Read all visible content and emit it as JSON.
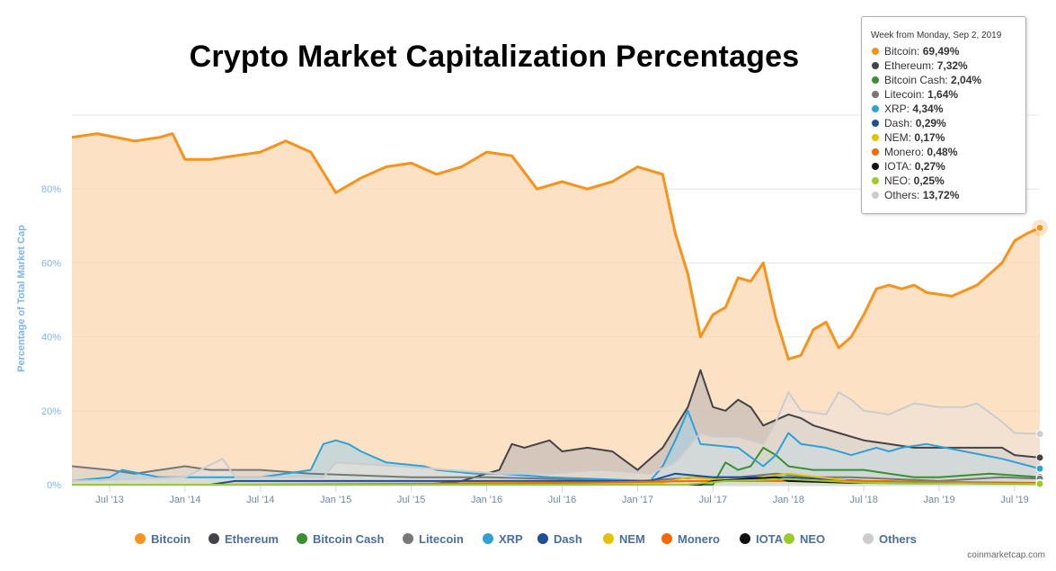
{
  "chart_data": {
    "type": "area",
    "title": "Crypto Market Capitalization Percentages",
    "xlabel": "",
    "ylabel": "Percentage of Total Market Cap",
    "ylim": [
      0,
      100
    ],
    "y_ticks": [
      "0%",
      "20%",
      "40%",
      "60%",
      "80%"
    ],
    "x_ticks": [
      "Jul '13",
      "Jan '14",
      "Jul '14",
      "Jan '15",
      "Jul '15",
      "Jan '16",
      "Jul '16",
      "Jan '17",
      "Jul '17",
      "Jan '18",
      "Jul '18",
      "Jan '19",
      "Jul '19"
    ],
    "x_tick_dates": [
      "2013-07",
      "2014-01",
      "2014-07",
      "2015-01",
      "2015-07",
      "2016-01",
      "2016-07",
      "2017-01",
      "2017-07",
      "2018-01",
      "2018-07",
      "2019-01",
      "2019-07"
    ],
    "x_range": [
      "2013-04",
      "2019-09"
    ],
    "grid": true,
    "legend_position": "bottom",
    "series": [
      {
        "name": "Bitcoin",
        "color": "#f7931a",
        "fill": "#fbd7b0",
        "points": [
          [
            "2013-04",
            94
          ],
          [
            "2013-06",
            95
          ],
          [
            "2013-09",
            93
          ],
          [
            "2013-11",
            94
          ],
          [
            "2013-12",
            95
          ],
          [
            "2014-01",
            88
          ],
          [
            "2014-03",
            88
          ],
          [
            "2014-05",
            89
          ],
          [
            "2014-07",
            90
          ],
          [
            "2014-09",
            93
          ],
          [
            "2014-11",
            90
          ],
          [
            "2015-01",
            79
          ],
          [
            "2015-03",
            83
          ],
          [
            "2015-05",
            86
          ],
          [
            "2015-07",
            87
          ],
          [
            "2015-09",
            84
          ],
          [
            "2015-11",
            86
          ],
          [
            "2016-01",
            90
          ],
          [
            "2016-03",
            89
          ],
          [
            "2016-05",
            80
          ],
          [
            "2016-07",
            82
          ],
          [
            "2016-09",
            80
          ],
          [
            "2016-11",
            82
          ],
          [
            "2017-01",
            86
          ],
          [
            "2017-02",
            85
          ],
          [
            "2017-03",
            84
          ],
          [
            "2017-04",
            68
          ],
          [
            "2017-05",
            57
          ],
          [
            "2017-06",
            40
          ],
          [
            "2017-07",
            46
          ],
          [
            "2017-08",
            48
          ],
          [
            "2017-09",
            56
          ],
          [
            "2017-10",
            55
          ],
          [
            "2017-11",
            60
          ],
          [
            "2017-12",
            45
          ],
          [
            "2018-01",
            34
          ],
          [
            "2018-02",
            35
          ],
          [
            "2018-03",
            42
          ],
          [
            "2018-04",
            44
          ],
          [
            "2018-05",
            37
          ],
          [
            "2018-06",
            40
          ],
          [
            "2018-07",
            46
          ],
          [
            "2018-08",
            53
          ],
          [
            "2018-09",
            54
          ],
          [
            "2018-10",
            53
          ],
          [
            "2018-11",
            54
          ],
          [
            "2018-12",
            52
          ],
          [
            "2019-02",
            51
          ],
          [
            "2019-04",
            54
          ],
          [
            "2019-05",
            57
          ],
          [
            "2019-06",
            60
          ],
          [
            "2019-07",
            66
          ],
          [
            "2019-08",
            68
          ],
          [
            "2019-09",
            69.49
          ]
        ]
      },
      {
        "name": "Ethereum",
        "color": "#434348",
        "fill": "#b5b3b5",
        "points": [
          [
            "2013-04",
            0
          ],
          [
            "2015-08",
            0
          ],
          [
            "2015-11",
            1
          ],
          [
            "2016-02",
            4
          ],
          [
            "2016-03",
            11
          ],
          [
            "2016-04",
            10
          ],
          [
            "2016-06",
            12
          ],
          [
            "2016-07",
            9
          ],
          [
            "2016-09",
            10
          ],
          [
            "2016-11",
            9
          ],
          [
            "2017-01",
            4
          ],
          [
            "2017-03",
            10
          ],
          [
            "2017-05",
            21
          ],
          [
            "2017-06",
            31
          ],
          [
            "2017-07",
            21
          ],
          [
            "2017-08",
            20
          ],
          [
            "2017-09",
            23
          ],
          [
            "2017-10",
            21
          ],
          [
            "2017-11",
            16
          ],
          [
            "2018-01",
            19
          ],
          [
            "2018-02",
            18
          ],
          [
            "2018-03",
            16
          ],
          [
            "2018-05",
            14
          ],
          [
            "2018-07",
            12
          ],
          [
            "2018-09",
            11
          ],
          [
            "2018-11",
            10
          ],
          [
            "2019-01",
            10
          ],
          [
            "2019-03",
            10
          ],
          [
            "2019-06",
            10
          ],
          [
            "2019-07",
            8
          ],
          [
            "2019-09",
            7.32
          ]
        ]
      },
      {
        "name": "Bitcoin Cash",
        "color": "#3b8f33",
        "fill": "#a7c9a1",
        "points": [
          [
            "2013-04",
            0
          ],
          [
            "2017-07",
            0
          ],
          [
            "2017-08",
            6
          ],
          [
            "2017-09",
            4
          ],
          [
            "2017-10",
            5
          ],
          [
            "2017-11",
            10
          ],
          [
            "2017-12",
            8
          ],
          [
            "2018-01",
            5
          ],
          [
            "2018-03",
            4
          ],
          [
            "2018-05",
            4
          ],
          [
            "2018-07",
            4
          ],
          [
            "2018-09",
            3
          ],
          [
            "2018-11",
            2
          ],
          [
            "2019-01",
            2
          ],
          [
            "2019-05",
            3
          ],
          [
            "2019-09",
            2.04
          ]
        ]
      },
      {
        "name": "Litecoin",
        "color": "#777777",
        "fill": "#cfcfcf",
        "points": [
          [
            "2013-04",
            5
          ],
          [
            "2013-07",
            4
          ],
          [
            "2013-09",
            3
          ],
          [
            "2014-01",
            5
          ],
          [
            "2014-03",
            4
          ],
          [
            "2014-07",
            4
          ],
          [
            "2014-11",
            3
          ],
          [
            "2015-07",
            2
          ],
          [
            "2016-01",
            2
          ],
          [
            "2017-01",
            1
          ],
          [
            "2017-06",
            2
          ],
          [
            "2017-09",
            2
          ],
          [
            "2017-12",
            3
          ],
          [
            "2018-03",
            2
          ],
          [
            "2018-06",
            2
          ],
          [
            "2019-01",
            1
          ],
          [
            "2019-06",
            2
          ],
          [
            "2019-09",
            1.64
          ]
        ]
      },
      {
        "name": "XRP",
        "color": "#2ea1d8",
        "fill": "#9fd0e8",
        "points": [
          [
            "2013-04",
            1
          ],
          [
            "2013-07",
            2
          ],
          [
            "2013-08",
            4
          ],
          [
            "2013-11",
            2
          ],
          [
            "2014-07",
            2
          ],
          [
            "2014-11",
            4
          ],
          [
            "2014-12",
            11
          ],
          [
            "2015-01",
            12
          ],
          [
            "2015-02",
            11
          ],
          [
            "2015-03",
            9
          ],
          [
            "2015-05",
            6
          ],
          [
            "2015-08",
            5
          ],
          [
            "2015-09",
            4
          ],
          [
            "2015-12",
            3
          ],
          [
            "2016-02",
            3
          ],
          [
            "2016-06",
            2
          ],
          [
            "2017-02",
            1
          ],
          [
            "2017-03",
            5
          ],
          [
            "2017-04",
            12
          ],
          [
            "2017-05",
            20
          ],
          [
            "2017-06",
            11
          ],
          [
            "2017-09",
            10
          ],
          [
            "2017-11",
            5
          ],
          [
            "2017-12",
            8
          ],
          [
            "2018-01",
            14
          ],
          [
            "2018-02",
            11
          ],
          [
            "2018-04",
            10
          ],
          [
            "2018-06",
            8
          ],
          [
            "2018-08",
            10
          ],
          [
            "2018-09",
            9
          ],
          [
            "2018-10",
            10
          ],
          [
            "2018-12",
            11
          ],
          [
            "2019-03",
            9
          ],
          [
            "2019-06",
            7
          ],
          [
            "2019-09",
            4.34
          ]
        ]
      },
      {
        "name": "Dash",
        "color": "#1f4f96",
        "fill": "#8ea5c8",
        "points": [
          [
            "2013-04",
            0
          ],
          [
            "2014-03",
            0
          ],
          [
            "2014-05",
            1
          ],
          [
            "2015-09",
            1
          ],
          [
            "2016-04",
            1
          ],
          [
            "2017-02",
            1
          ],
          [
            "2017-04",
            3
          ],
          [
            "2017-07",
            2
          ],
          [
            "2018-01",
            2
          ],
          [
            "2018-07",
            1
          ],
          [
            "2019-09",
            0.29
          ]
        ]
      },
      {
        "name": "NEM",
        "color": "#e4c200",
        "fill": "#f3e4a0",
        "points": [
          [
            "2013-04",
            0
          ],
          [
            "2015-04",
            0
          ],
          [
            "2016-01",
            0.5
          ],
          [
            "2017-03",
            0.5
          ],
          [
            "2017-05",
            2
          ],
          [
            "2017-09",
            1
          ],
          [
            "2018-01",
            3
          ],
          [
            "2018-06",
            1
          ],
          [
            "2019-09",
            0.17
          ]
        ]
      },
      {
        "name": "Monero",
        "color": "#f46a00",
        "fill": "#f9c49a",
        "points": [
          [
            "2013-04",
            0
          ],
          [
            "2014-06",
            0
          ],
          [
            "2016-08",
            0.5
          ],
          [
            "2017-06",
            1
          ],
          [
            "2018-01",
            1
          ],
          [
            "2018-07",
            1
          ],
          [
            "2019-09",
            0.48
          ]
        ]
      },
      {
        "name": "IOTA",
        "color": "#111111",
        "fill": "#b0b0b0",
        "points": [
          [
            "2013-04",
            0
          ],
          [
            "2017-06",
            0
          ],
          [
            "2017-07",
            1
          ],
          [
            "2017-12",
            2
          ],
          [
            "2018-01",
            1
          ],
          [
            "2018-06",
            0.5
          ],
          [
            "2019-09",
            0.27
          ]
        ]
      },
      {
        "name": "NEO",
        "color": "#9ccc2c",
        "fill": "#d6eba9",
        "points": [
          [
            "2013-04",
            0
          ],
          [
            "2017-05",
            0
          ],
          [
            "2017-08",
            1
          ],
          [
            "2018-01",
            1.5
          ],
          [
            "2018-07",
            0.5
          ],
          [
            "2019-09",
            0.25
          ]
        ]
      },
      {
        "name": "Others",
        "color": "#cccccc",
        "fill": "#ebe3dc",
        "points": [
          [
            "2013-04",
            1
          ],
          [
            "2014-01",
            2
          ],
          [
            "2014-04",
            7
          ],
          [
            "2014-05",
            2
          ],
          [
            "2014-10",
            2
          ],
          [
            "2014-12",
            2
          ],
          [
            "2015-01",
            6
          ],
          [
            "2015-06",
            5
          ],
          [
            "2015-10",
            4
          ],
          [
            "2016-02",
            3
          ],
          [
            "2016-06",
            3
          ],
          [
            "2016-10",
            4
          ],
          [
            "2017-02",
            3
          ],
          [
            "2017-04",
            6
          ],
          [
            "2017-06",
            14
          ],
          [
            "2017-07",
            13
          ],
          [
            "2017-09",
            13
          ],
          [
            "2017-11",
            11
          ],
          [
            "2017-12",
            17
          ],
          [
            "2018-01",
            25
          ],
          [
            "2018-02",
            20
          ],
          [
            "2018-04",
            19
          ],
          [
            "2018-05",
            25
          ],
          [
            "2018-06",
            23
          ],
          [
            "2018-07",
            20
          ],
          [
            "2018-09",
            19
          ],
          [
            "2018-11",
            22
          ],
          [
            "2019-01",
            21
          ],
          [
            "2019-03",
            21
          ],
          [
            "2019-04",
            22
          ],
          [
            "2019-06",
            17
          ],
          [
            "2019-07",
            14
          ],
          [
            "2019-09",
            13.72
          ]
        ]
      }
    ]
  },
  "tooltip": {
    "header": "Week from Monday, Sep 2, 2019",
    "rows": [
      {
        "name": "Bitcoin",
        "value": "69,49%",
        "color": "#f7931a"
      },
      {
        "name": "Ethereum",
        "value": "7,32%",
        "color": "#434348"
      },
      {
        "name": "Bitcoin Cash",
        "value": "2,04%",
        "color": "#3b8f33"
      },
      {
        "name": "Litecoin",
        "value": "1,64%",
        "color": "#777777"
      },
      {
        "name": "XRP",
        "value": "4,34%",
        "color": "#2ea1d8"
      },
      {
        "name": "Dash",
        "value": "0,29%",
        "color": "#1f4f96"
      },
      {
        "name": "NEM",
        "value": "0,17%",
        "color": "#e4c200"
      },
      {
        "name": "Monero",
        "value": "0,48%",
        "color": "#f46a00"
      },
      {
        "name": "IOTA",
        "value": "0,27%",
        "color": "#111111"
      },
      {
        "name": "NEO",
        "value": "0,25%",
        "color": "#9ccc2c"
      },
      {
        "name": "Others",
        "value": "13,72%",
        "color": "#cccccc"
      }
    ]
  },
  "legend": [
    {
      "name": "Bitcoin",
      "color": "#f7931a"
    },
    {
      "name": "Ethereum",
      "color": "#434348"
    },
    {
      "name": "Bitcoin Cash",
      "color": "#3b8f33"
    },
    {
      "name": "Litecoin",
      "color": "#777777"
    },
    {
      "name": "XRP",
      "color": "#2ea1d8"
    },
    {
      "name": "Dash",
      "color": "#1f4f96"
    },
    {
      "name": "NEM",
      "color": "#e4c200"
    },
    {
      "name": "Monero",
      "color": "#f46a00"
    },
    {
      "name": "IOTA",
      "color": "#111111"
    },
    {
      "name": "NEO",
      "color": "#9ccc2c"
    },
    {
      "name": "Others",
      "color": "#cccccc"
    }
  ],
  "credit": "coinmarketcap.com"
}
